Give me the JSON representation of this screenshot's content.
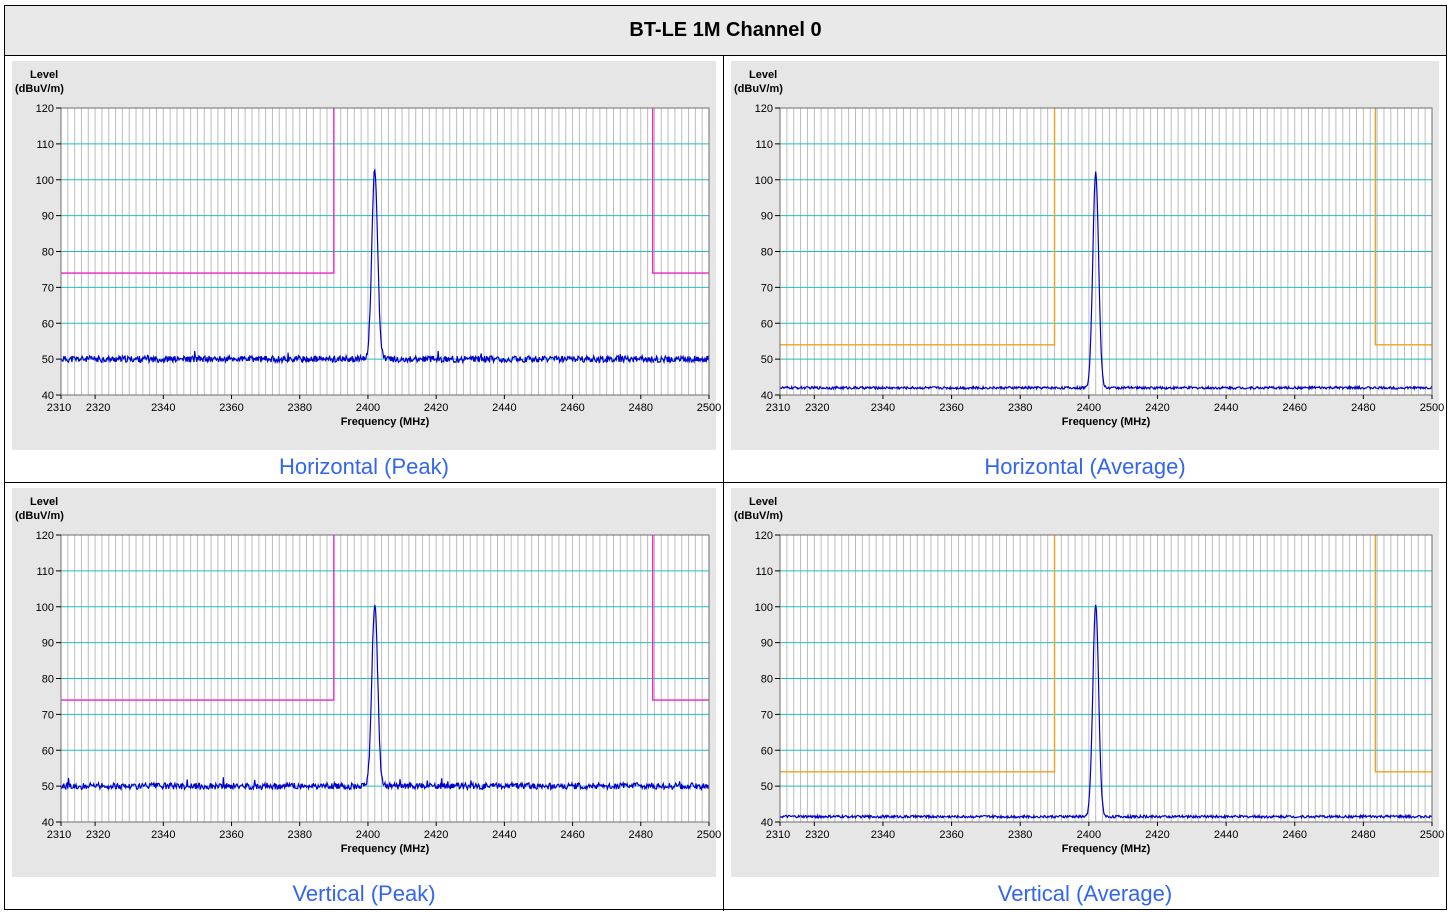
{
  "title": "BT-LE 1M Channel 0",
  "colors": {
    "grid_h": "#1fbfbf",
    "grid_v": "#bdbdbd",
    "trace": "#0000cc",
    "limit_peak": "#ee22cc",
    "limit_avg": "#f0a020",
    "plot_bg": "#ffffff",
    "panel_bg": "#e6e6e6"
  },
  "chart_data": [
    {
      "type": "line",
      "panel": "top-left",
      "caption": "Horizontal (Peak)",
      "ylabel_line1": "Level",
      "ylabel_line2": "(dBuV/m)",
      "xlabel": "Frequency (MHz)",
      "xlim": [
        2310,
        2500
      ],
      "ylim": [
        40,
        120
      ],
      "xticks": [
        2310,
        2320,
        2340,
        2360,
        2380,
        2400,
        2420,
        2440,
        2460,
        2480,
        2500
      ],
      "yticks": [
        40,
        50,
        60,
        70,
        80,
        90,
        100,
        110,
        120
      ],
      "limit": {
        "kind": "peak",
        "level": 74,
        "band_low": 2390,
        "band_high": 2483.5
      },
      "trace": {
        "noise_floor": 50,
        "peak_freq": 2402,
        "peak_level": 103
      }
    },
    {
      "type": "line",
      "panel": "top-right",
      "caption": "Horizontal (Average)",
      "ylabel_line1": "Level",
      "ylabel_line2": "(dBuV/m)",
      "xlabel": "Frequency (MHz)",
      "xlim": [
        2310,
        2500
      ],
      "ylim": [
        40,
        120
      ],
      "xticks": [
        2310,
        2320,
        2340,
        2360,
        2380,
        2400,
        2420,
        2440,
        2460,
        2480,
        2500
      ],
      "yticks": [
        40,
        50,
        60,
        70,
        80,
        90,
        100,
        110,
        120
      ],
      "limit": {
        "kind": "avg",
        "level": 54,
        "band_low": 2390,
        "band_high": 2483.5
      },
      "trace": {
        "noise_floor": 42,
        "peak_freq": 2402,
        "peak_level": 102
      }
    },
    {
      "type": "line",
      "panel": "bottom-left",
      "caption": "Vertical (Peak)",
      "ylabel_line1": "Level",
      "ylabel_line2": "(dBuV/m)",
      "xlabel": "Frequency (MHz)",
      "xlim": [
        2310,
        2500
      ],
      "ylim": [
        40,
        120
      ],
      "xticks": [
        2310,
        2320,
        2340,
        2360,
        2380,
        2400,
        2420,
        2440,
        2460,
        2480,
        2500
      ],
      "yticks": [
        40,
        50,
        60,
        70,
        80,
        90,
        100,
        110,
        120
      ],
      "limit": {
        "kind": "peak",
        "level": 74,
        "band_low": 2390,
        "band_high": 2483.5
      },
      "trace": {
        "noise_floor": 50,
        "peak_freq": 2402,
        "peak_level": 101
      }
    },
    {
      "type": "line",
      "panel": "bottom-right",
      "caption": "Vertical (Average)",
      "ylabel_line1": "Level",
      "ylabel_line2": "(dBuV/m)",
      "xlabel": "Frequency (MHz)",
      "xlim": [
        2310,
        2500
      ],
      "ylim": [
        40,
        120
      ],
      "xticks": [
        2310,
        2320,
        2340,
        2360,
        2380,
        2400,
        2420,
        2440,
        2460,
        2480,
        2500
      ],
      "yticks": [
        40,
        50,
        60,
        70,
        80,
        90,
        100,
        110,
        120
      ],
      "limit": {
        "kind": "avg",
        "level": 54,
        "band_low": 2390,
        "band_high": 2483.5
      },
      "trace": {
        "noise_floor": 41.5,
        "peak_freq": 2402,
        "peak_level": 100.5
      }
    }
  ]
}
